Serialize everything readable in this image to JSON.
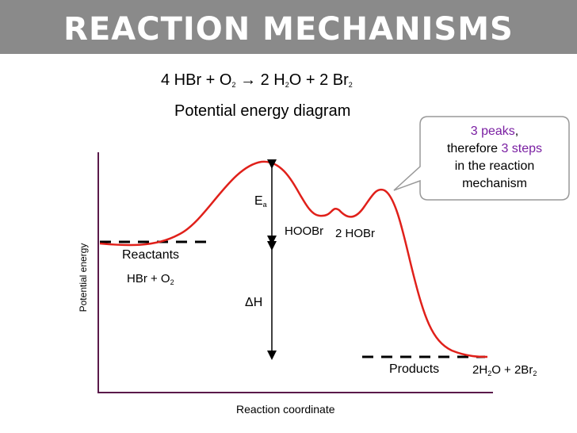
{
  "title": "REACTION MECHANISMS",
  "equation": {
    "lhs_coef": "4 HBr + O",
    "lhs_sub": "2",
    "arrow": "→",
    "mid": " 2 H",
    "mid_sub": "2",
    "rest": "O + 2 Br",
    "rest_sub": "2"
  },
  "subtitle": "Potential energy diagram",
  "callout": {
    "part1": "3 peaks",
    "part2": ",",
    "part3": "therefore ",
    "part4": "3 steps",
    "part5": "in the reaction mechanism",
    "highlight_color": "#7a1fa2"
  },
  "labels": {
    "ea": "E",
    "ea_sub": "a",
    "hooobr": "HOOBr",
    "two_hobr": "2 HOBr",
    "reactants": "Reactants",
    "reactants_formula": "HBr + O",
    "reactants_formula_sub": "2",
    "delta_h": "ΔH",
    "products": "Products",
    "products_formula_a": "2H",
    "products_formula_a_sub": "2",
    "products_formula_b": "O + 2Br",
    "products_formula_b_sub": "2"
  },
  "axes": {
    "y_label": "Potential energy",
    "x_label": "Reaction coordinate",
    "axis_color": "#5a1a4a"
  },
  "curve_color": "#e0201a"
}
